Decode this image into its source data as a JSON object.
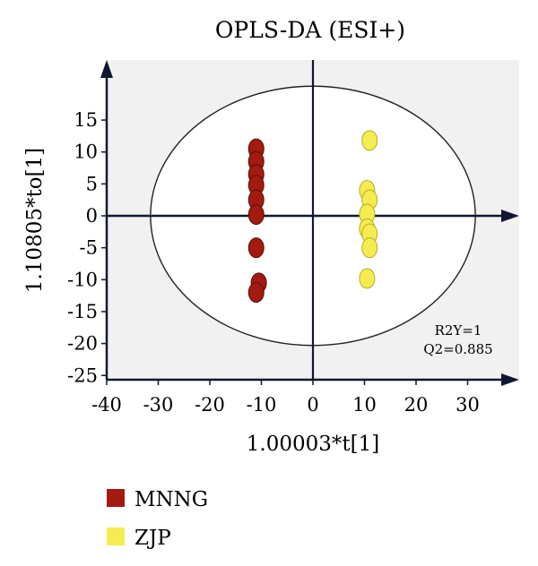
{
  "chart_data": {
    "type": "scatter",
    "title": "OPLS-DA (ESI+)",
    "xlabel": "1.00003*t[1]",
    "ylabel": "1.10805*to[1]",
    "xlim": [
      -40,
      40
    ],
    "ylim": [
      -25,
      20
    ],
    "xticks": [
      -40,
      -30,
      -20,
      -10,
      0,
      10,
      20,
      30
    ],
    "yticks": [
      15,
      10,
      5,
      0,
      -5,
      -10,
      -15,
      -20,
      -25
    ],
    "grid": false,
    "legend_position": "bottom-left",
    "annotations": [
      "R2Y=1",
      "Q2=0.885"
    ],
    "ellipse": {
      "cx": 0,
      "cy": 0,
      "rx": 31.5,
      "ry": 20.3
    },
    "series": [
      {
        "name": "MNNG",
        "color": "#a31a10",
        "points": [
          [
            -11,
            10.5
          ],
          [
            -11,
            8.5
          ],
          [
            -11,
            6.5
          ],
          [
            -11,
            4.8
          ],
          [
            -11,
            2.5
          ],
          [
            -11,
            0.2
          ],
          [
            -11,
            -5
          ],
          [
            -10.5,
            -10.5
          ],
          [
            -11,
            -12
          ]
        ]
      },
      {
        "name": "ZJP",
        "color": "#f5ec50",
        "points": [
          [
            11,
            11.8
          ],
          [
            10.5,
            4
          ],
          [
            11,
            2.5
          ],
          [
            10.5,
            0.3
          ],
          [
            10.5,
            -2
          ],
          [
            11,
            -2.8
          ],
          [
            11,
            -5
          ],
          [
            10.5,
            -9.8
          ]
        ]
      }
    ]
  }
}
